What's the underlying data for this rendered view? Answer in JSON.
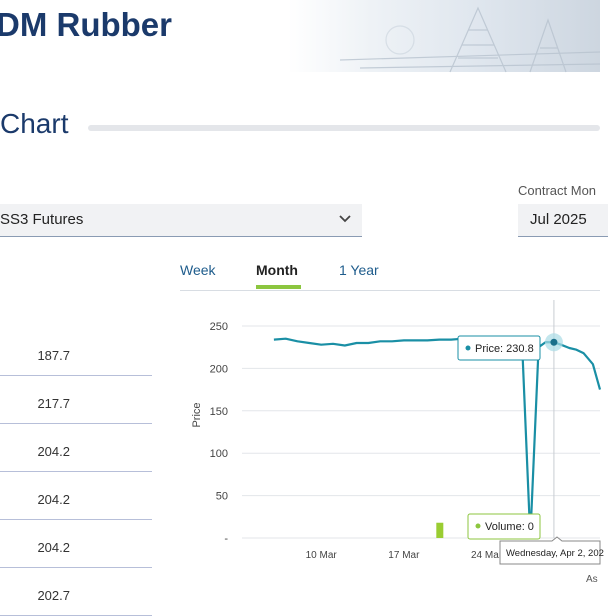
{
  "header": {
    "title": "DM Rubber"
  },
  "section": {
    "title": "Chart"
  },
  "product_select": {
    "value": "SS3 Futures"
  },
  "contract": {
    "label": "Contract Mon",
    "value": "Jul 2025"
  },
  "price_list": [
    "187.7",
    "217.7",
    "204.2",
    "204.2",
    "204.2",
    "202.7"
  ],
  "tabs": [
    {
      "label": "Week"
    },
    {
      "label": "Month",
      "active": true
    },
    {
      "label": "1 Year"
    }
  ],
  "tooltips": {
    "price": "Price: 230.8",
    "volume": "Volume: 0",
    "date": "Wednesday, Apr 2, 202"
  },
  "footer_text": "As",
  "colors": {
    "navy": "#1b3a6b",
    "accent": "#8cc63f",
    "line": "#1a8fa5"
  },
  "chart_data": {
    "type": "line",
    "ylabel": "Price",
    "ylim": [
      0,
      250
    ],
    "yticks": [
      {
        "value": 0,
        "label": "-"
      },
      {
        "value": 50,
        "label": "50"
      },
      {
        "value": 100,
        "label": "100"
      },
      {
        "value": 150,
        "label": "150"
      },
      {
        "value": 200,
        "label": "200"
      },
      {
        "value": 250,
        "label": "250"
      }
    ],
    "xticks": [
      {
        "day": 10,
        "label": "10 Mar"
      },
      {
        "day": 17,
        "label": "17 Mar"
      },
      {
        "day": 24,
        "label": "24 Mar"
      }
    ],
    "series": [
      {
        "kind": "price",
        "x": [
          6,
          7,
          8,
          9,
          10,
          11,
          12,
          13,
          14,
          15,
          16,
          17,
          18,
          19,
          20,
          21,
          22,
          23,
          24,
          25,
          26,
          27,
          27.7,
          28.4,
          29,
          29.7,
          30.3,
          31,
          31.6,
          32.2,
          33,
          33.6
        ],
        "y": [
          234,
          235,
          232,
          230,
          228,
          229,
          227,
          230,
          230,
          232,
          232,
          233,
          233,
          233,
          234,
          234,
          235,
          234,
          234,
          234,
          236,
          232,
          0,
          225,
          231,
          230.8,
          228,
          224,
          222,
          218,
          205,
          175
        ]
      },
      {
        "kind": "volume",
        "x": [
          20
        ],
        "y": [
          18
        ]
      }
    ],
    "highlight": {
      "x": 29.7,
      "y": 230.8
    }
  }
}
